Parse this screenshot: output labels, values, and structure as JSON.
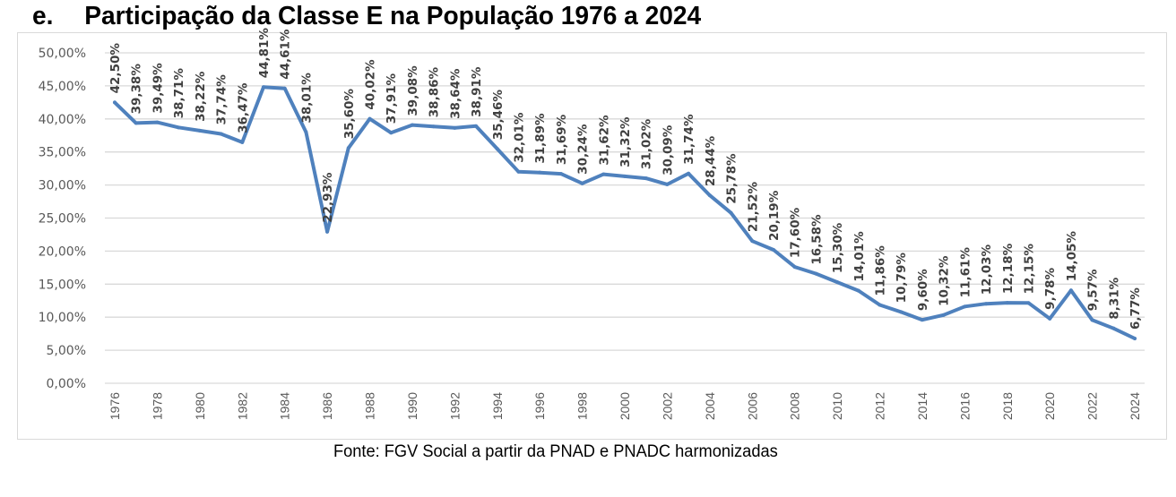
{
  "header": {
    "letter": "e.",
    "title": "Participação da Classe E na População 1976 a 2024"
  },
  "footer": {
    "source": "Fonte: FGV Social a partir da PNAD e PNADC harmonizadas"
  },
  "colors": {
    "line": "#4f81bd",
    "grid": "#d9d9d9",
    "tick_text": "#595959",
    "label_text": "#404040"
  },
  "chart_data": {
    "type": "line",
    "title": "Participação da Classe E na População 1976 a 2024",
    "xlabel": "",
    "ylabel": "",
    "ylim": [
      0,
      50
    ],
    "grid": true,
    "legend": "none",
    "yticks": [
      "0,00%",
      "5,00%",
      "10,00%",
      "15,00%",
      "20,00%",
      "25,00%",
      "30,00%",
      "35,00%",
      "40,00%",
      "45,00%",
      "50,00%"
    ],
    "xticks": [
      "1976",
      "1978",
      "1980",
      "1982",
      "1984",
      "1986",
      "1988",
      "1990",
      "1992",
      "1994",
      "1996",
      "1998",
      "2000",
      "2002",
      "2004",
      "2006",
      "2008",
      "2010",
      "2012",
      "2014",
      "2016",
      "2018",
      "2020",
      "2022",
      "2024"
    ],
    "series": [
      {
        "name": "Classe E",
        "x": [
          1976,
          1977,
          1978,
          1979,
          1980,
          1981,
          1982,
          1983,
          1984,
          1985,
          1986,
          1987,
          1988,
          1989,
          1990,
          1991,
          1992,
          1993,
          1994,
          1995,
          1996,
          1997,
          1998,
          1999,
          2000,
          2001,
          2002,
          2003,
          2004,
          2005,
          2006,
          2007,
          2008,
          2009,
          2010,
          2011,
          2012,
          2013,
          2014,
          2015,
          2016,
          2017,
          2018,
          2019,
          2020,
          2021,
          2022,
          2023,
          2024
        ],
        "values": [
          42.5,
          39.38,
          39.49,
          38.71,
          38.22,
          37.74,
          36.47,
          44.81,
          44.61,
          38.01,
          22.93,
          35.6,
          40.02,
          37.91,
          39.08,
          38.86,
          38.64,
          38.91,
          35.46,
          32.01,
          31.89,
          31.69,
          30.24,
          31.62,
          31.32,
          31.02,
          30.09,
          31.74,
          28.44,
          25.78,
          21.52,
          20.19,
          17.6,
          16.58,
          15.3,
          14.01,
          11.86,
          10.79,
          9.6,
          10.32,
          11.61,
          12.03,
          12.18,
          12.15,
          9.78,
          14.05,
          9.57,
          8.31,
          6.77
        ],
        "labels": [
          "42,50%",
          "39,38%",
          "39,49%",
          "38,71%",
          "38,22%",
          "37,74%",
          "36,47%",
          "44,81%",
          "44,61%",
          "38,01%",
          "22,93%",
          "35,60%",
          "40,02%",
          "37,91%",
          "39,08%",
          "38,86%",
          "38,64%",
          "38,91%",
          "35,46%",
          "32,01%",
          "31,89%",
          "31,69%",
          "30,24%",
          "31,62%",
          "31,32%",
          "31,02%",
          "30,09%",
          "31,74%",
          "28,44%",
          "25,78%",
          "21,52%",
          "20,19%",
          "17,60%",
          "16,58%",
          "15,30%",
          "14,01%",
          "11,86%",
          "10,79%",
          "9,60%",
          "10,32%",
          "11,61%",
          "12,03%",
          "12,18%",
          "12,15%",
          "9,78%",
          "14,05%",
          "9,57%",
          "8,31%",
          "6,77%"
        ]
      }
    ]
  }
}
